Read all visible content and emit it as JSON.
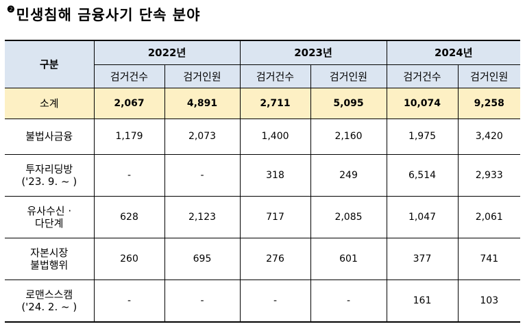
{
  "title": {
    "marker": "❷",
    "text": "민생침해 금융사기 단속 분야"
  },
  "table": {
    "category_header": "구분",
    "years": [
      "2022년",
      "2023년",
      "2024년"
    ],
    "sub_headers": [
      "검거건수",
      "검거인원",
      "검거건수",
      "검거인원",
      "검거건수",
      "검거인원"
    ],
    "rows": [
      {
        "label": [
          "소계"
        ],
        "values": [
          "2,067",
          "4,891",
          "2,711",
          "5,095",
          "10,074",
          "9,258"
        ]
      },
      {
        "label": [
          "불법사금융"
        ],
        "values": [
          "1,179",
          "2,073",
          "1,400",
          "2,160",
          "1,975",
          "3,420"
        ]
      },
      {
        "label": [
          "투자리딩방",
          "('23. 9. ~ )"
        ],
        "values": [
          "-",
          "-",
          "318",
          "249",
          "6,514",
          "2,933"
        ]
      },
      {
        "label": [
          "유사수신 ·",
          "다단계"
        ],
        "values": [
          "628",
          "2,123",
          "717",
          "2,085",
          "1,047",
          "2,061"
        ]
      },
      {
        "label": [
          "자본시장",
          "불법행위"
        ],
        "values": [
          "260",
          "695",
          "276",
          "601",
          "377",
          "741"
        ]
      },
      {
        "label": [
          "로맨스스캠",
          "('24. 2. ~ )"
        ],
        "values": [
          "-",
          "-",
          "-",
          "-",
          "161",
          "103"
        ]
      }
    ]
  }
}
